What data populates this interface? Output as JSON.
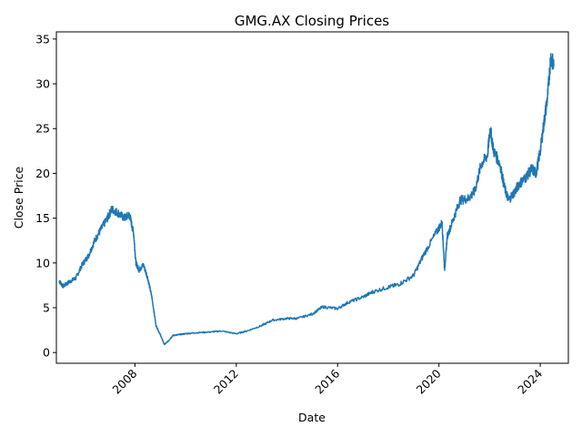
{
  "chart_data": {
    "type": "line",
    "title": "GMG.AX Closing Prices",
    "xlabel": "Date",
    "ylabel": "Close Price",
    "x_ticks": [
      "2008",
      "2012",
      "2016",
      "2020",
      "2024"
    ],
    "y_ticks": [
      0,
      5,
      10,
      15,
      20,
      25,
      30,
      35
    ],
    "xlim": [
      "2004-11-25",
      "2025-02-10"
    ],
    "ylim": [
      -1.2,
      35.8
    ],
    "grid": false,
    "colors": {
      "line": "#1f77b4",
      "axes": "#000000"
    },
    "series": [
      {
        "x": [
          "2005-01-03",
          "2005-03-01",
          "2005-06-01",
          "2005-09-01",
          "2005-12-01",
          "2006-03-01",
          "2006-06-01",
          "2006-09-01",
          "2006-12-01",
          "2007-02-01",
          "2007-05-01",
          "2007-08-01",
          "2007-10-15",
          "2007-12-15",
          "2008-01-15",
          "2008-03-01",
          "2008-05-01",
          "2008-07-01",
          "2008-09-01",
          "2008-11-01",
          "2009-01-01",
          "2009-03-01",
          "2009-05-01",
          "2009-07-01",
          "2009-10-01",
          "2010-01-01",
          "2010-06-01",
          "2011-01-01",
          "2011-06-01",
          "2012-01-01",
          "2012-06-01",
          "2013-01-01",
          "2013-06-01",
          "2014-01-01",
          "2014-06-01",
          "2015-01-01",
          "2015-06-01",
          "2016-01-01",
          "2016-06-01",
          "2017-01-01",
          "2017-06-01",
          "2018-01-01",
          "2018-06-01",
          "2019-01-01",
          "2019-06-01",
          "2019-12-01",
          "2020-02-15",
          "2020-03-23",
          "2020-05-01",
          "2020-08-01",
          "2020-11-01",
          "2021-03-01",
          "2021-06-01",
          "2021-09-01",
          "2021-12-01",
          "2022-01-10",
          "2022-03-01",
          "2022-06-01",
          "2022-08-01",
          "2022-10-01",
          "2023-01-01",
          "2023-03-01",
          "2023-06-01",
          "2023-09-01",
          "2023-11-01",
          "2024-01-01",
          "2024-03-01",
          "2024-04-15",
          "2024-06-01",
          "2024-07-15"
        ],
        "values": [
          8.0,
          7.4,
          7.9,
          8.3,
          9.8,
          10.8,
          12.5,
          13.8,
          15.0,
          16.0,
          15.6,
          15.0,
          15.4,
          13.2,
          10.0,
          9.2,
          9.8,
          8.4,
          6.2,
          3.0,
          2.0,
          0.9,
          1.3,
          1.9,
          2.0,
          2.1,
          2.2,
          2.3,
          2.4,
          2.1,
          2.4,
          3.0,
          3.6,
          3.8,
          3.8,
          4.3,
          5.1,
          4.9,
          5.6,
          6.2,
          6.8,
          7.3,
          7.6,
          8.6,
          11.0,
          13.5,
          14.5,
          9.2,
          13.0,
          15.0,
          17.0,
          17.2,
          18.0,
          21.0,
          22.0,
          25.0,
          22.5,
          21.0,
          18.5,
          17.0,
          18.0,
          18.8,
          19.5,
          20.5,
          20.0,
          22.5,
          26.0,
          28.5,
          33.0,
          32.0
        ]
      }
    ]
  }
}
